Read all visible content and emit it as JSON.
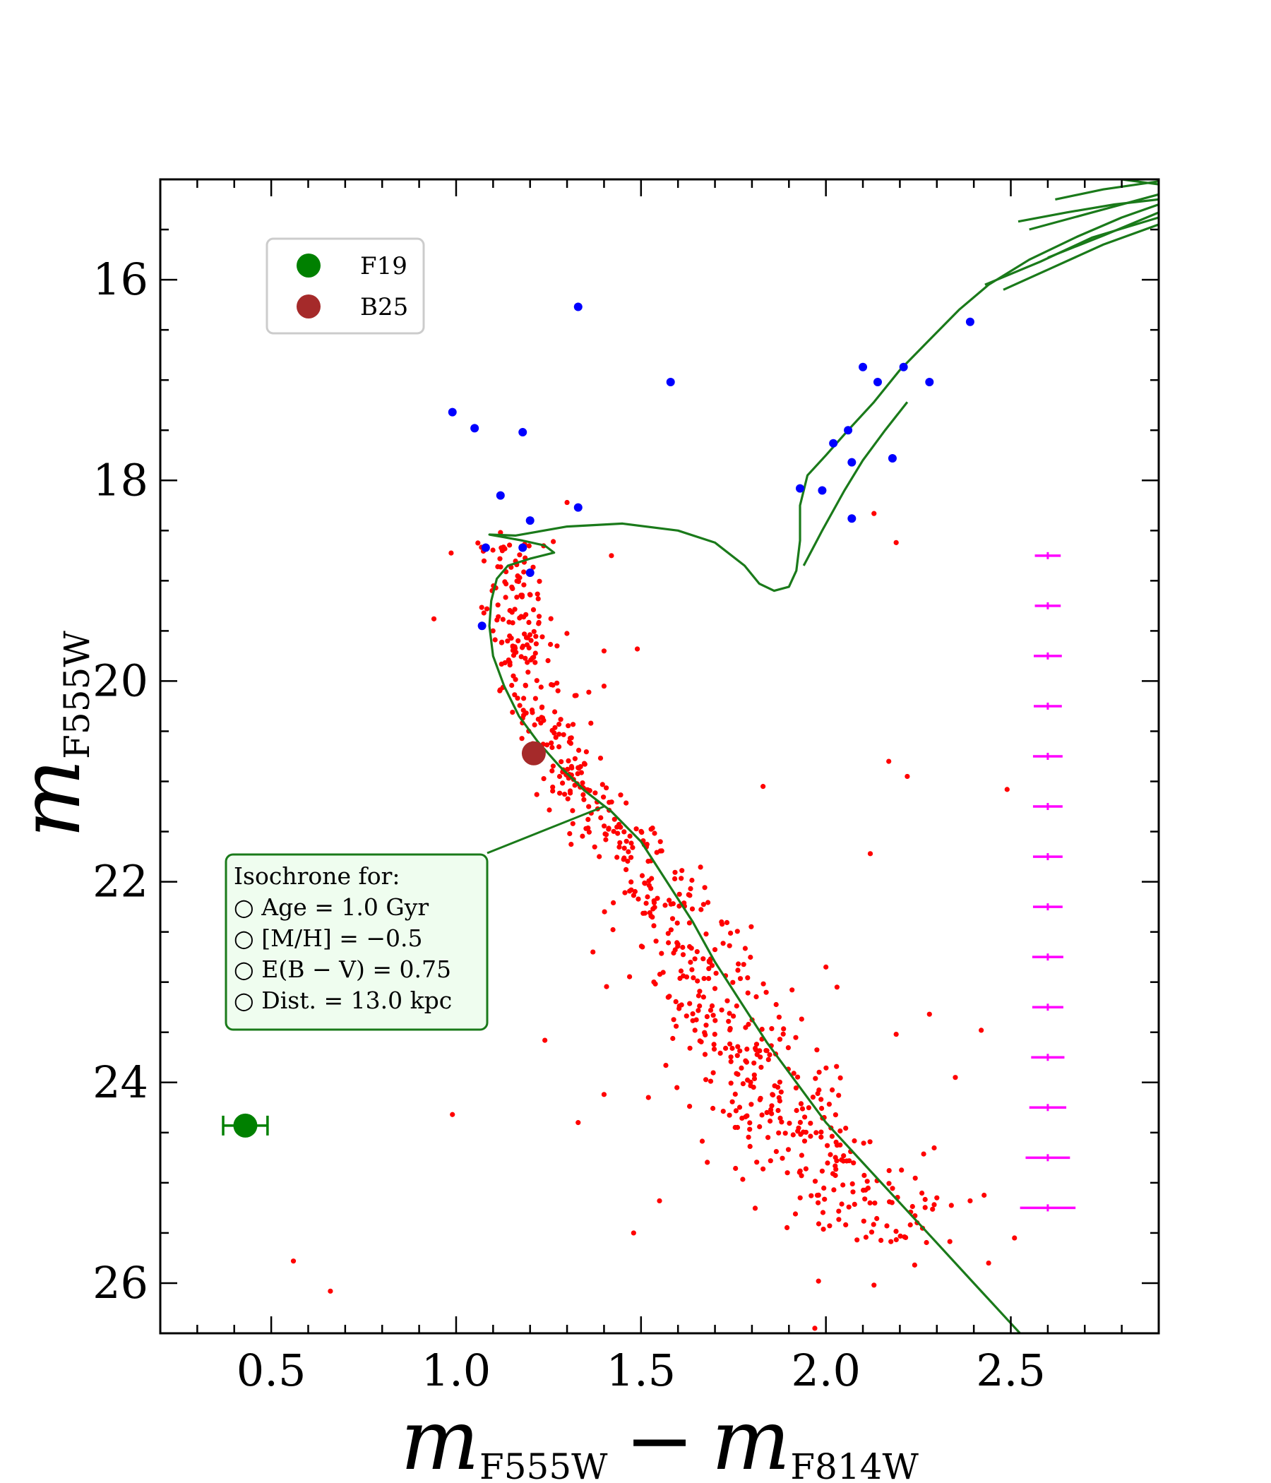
{
  "chart_data": {
    "type": "scatter",
    "title": "",
    "xlabel": {
      "main": "m",
      "sub1": "F555W",
      "minus": "−",
      "main2": "m",
      "sub2": "F814W"
    },
    "ylabel": {
      "main": "m",
      "sub": "F555W"
    },
    "xlim": [
      0.2,
      2.9
    ],
    "ylim": [
      26.5,
      15.0
    ],
    "y_inverted": true,
    "xticks": [
      0.5,
      1.0,
      1.5,
      2.0,
      2.5
    ],
    "xtick_labels": [
      "0.5",
      "1.0",
      "1.5",
      "2.0",
      "2.5"
    ],
    "yticks": [
      16,
      18,
      20,
      22,
      24,
      26
    ],
    "ytick_labels": [
      "16",
      "18",
      "20",
      "22",
      "24",
      "26"
    ],
    "legend": {
      "location": "upper-left",
      "entries": [
        {
          "label": "F19",
          "color": "#008000",
          "marker": "circle"
        },
        {
          "label": "B25",
          "color": "#a52a2a",
          "marker": "circle"
        }
      ]
    },
    "colors": {
      "members": "#ff0000",
      "bright_stars": "#0000ff",
      "isochrone": "#1a7a1a",
      "error_bars": "#ff00ff",
      "f19": "#008000",
      "b25": "#a52a2a",
      "annotation_bg": "#effdef"
    },
    "annotation": {
      "lines": [
        "Isochrone for:",
        "○ Age = 1.0 Gyr",
        "○ [M/H] = −0.5",
        "○ E(B − V) = 0.75",
        "○ Dist. = 13.0 kpc"
      ],
      "arrow_to": [
        1.4,
        21.25
      ]
    },
    "f19_point": {
      "x": 0.43,
      "y": 24.43,
      "xerr": 0.06
    },
    "b25_point": {
      "x": 1.21,
      "y": 20.72
    },
    "blue_stars": [
      [
        1.33,
        16.27
      ],
      [
        1.58,
        17.02
      ],
      [
        0.99,
        17.32
      ],
      [
        1.05,
        17.48
      ],
      [
        1.18,
        17.52
      ],
      [
        1.12,
        18.15
      ],
      [
        1.2,
        18.4
      ],
      [
        1.33,
        18.27
      ],
      [
        1.08,
        18.67
      ],
      [
        1.18,
        18.67
      ],
      [
        1.2,
        18.92
      ],
      [
        1.07,
        19.45
      ],
      [
        1.93,
        18.08
      ],
      [
        1.99,
        18.1
      ],
      [
        2.07,
        18.38
      ],
      [
        2.07,
        17.82
      ],
      [
        2.02,
        17.63
      ],
      [
        2.06,
        17.5
      ],
      [
        2.18,
        17.78
      ],
      [
        2.1,
        16.87
      ],
      [
        2.14,
        17.02
      ],
      [
        2.21,
        16.87
      ],
      [
        2.28,
        17.02
      ],
      [
        2.39,
        16.42
      ]
    ],
    "isochrone": {
      "main": [
        [
          2.6,
          26.8
        ],
        [
          2.5,
          26.4
        ],
        [
          2.4,
          26.0
        ],
        [
          2.3,
          25.6
        ],
        [
          2.2,
          25.2
        ],
        [
          2.1,
          24.8
        ],
        [
          2.0,
          24.4
        ],
        [
          1.92,
          24.0
        ],
        [
          1.84,
          23.6
        ],
        [
          1.77,
          23.2
        ],
        [
          1.7,
          22.8
        ],
        [
          1.64,
          22.4
        ],
        [
          1.57,
          22.0
        ],
        [
          1.5,
          21.6
        ],
        [
          1.42,
          21.3
        ],
        [
          1.35,
          21.1
        ],
        [
          1.28,
          20.85
        ],
        [
          1.22,
          20.6
        ],
        [
          1.17,
          20.35
        ],
        [
          1.13,
          20.05
        ],
        [
          1.1,
          19.75
        ],
        [
          1.09,
          19.45
        ],
        [
          1.095,
          19.2
        ],
        [
          1.11,
          18.98
        ],
        [
          1.14,
          18.85
        ],
        [
          1.2,
          18.78
        ],
        [
          1.265,
          18.72
        ],
        [
          1.24,
          18.65
        ],
        [
          1.18,
          18.6
        ],
        [
          1.12,
          18.56
        ],
        [
          1.09,
          18.54
        ],
        [
          1.16,
          18.55
        ],
        [
          1.3,
          18.46
        ],
        [
          1.45,
          18.43
        ],
        [
          1.6,
          18.5
        ],
        [
          1.7,
          18.62
        ],
        [
          1.78,
          18.85
        ],
        [
          1.82,
          19.03
        ],
        [
          1.86,
          19.1
        ],
        [
          1.9,
          19.06
        ],
        [
          1.92,
          18.9
        ],
        [
          1.93,
          18.6
        ],
        [
          1.93,
          18.25
        ],
        [
          1.95,
          17.95
        ],
        [
          2.0,
          17.75
        ],
        [
          2.06,
          17.5
        ],
        [
          2.13,
          17.22
        ],
        [
          2.2,
          16.9
        ],
        [
          2.28,
          16.6
        ],
        [
          2.36,
          16.3
        ],
        [
          2.44,
          16.05
        ],
        [
          2.55,
          15.8
        ],
        [
          2.68,
          15.57
        ],
        [
          2.8,
          15.38
        ],
        [
          2.9,
          15.25
        ]
      ],
      "secondary": [
        [
          1.94,
          18.85
        ],
        [
          1.99,
          18.5
        ],
        [
          2.05,
          18.1
        ],
        [
          2.1,
          17.8
        ],
        [
          2.16,
          17.5
        ],
        [
          2.22,
          17.22
        ]
      ],
      "agb": [
        [
          [
            2.48,
            16.1
          ],
          [
            2.6,
            15.9
          ],
          [
            2.75,
            15.65
          ],
          [
            2.9,
            15.45
          ]
        ],
        [
          [
            2.43,
            16.05
          ],
          [
            2.58,
            15.82
          ],
          [
            2.72,
            15.58
          ],
          [
            2.9,
            15.38
          ]
        ],
        [
          [
            2.6,
            15.78
          ],
          [
            2.75,
            15.56
          ],
          [
            2.9,
            15.33
          ]
        ],
        [
          [
            2.52,
            15.42
          ],
          [
            2.65,
            15.33
          ],
          [
            2.78,
            15.25
          ],
          [
            2.9,
            15.2
          ]
        ],
        [
          [
            2.55,
            15.5
          ],
          [
            2.7,
            15.35
          ],
          [
            2.9,
            15.15
          ]
        ],
        [
          [
            2.62,
            15.2
          ],
          [
            2.75,
            15.1
          ],
          [
            2.9,
            15.02
          ]
        ],
        [
          [
            2.8,
            15.0
          ],
          [
            2.9,
            15.05
          ]
        ]
      ]
    },
    "error_bars": {
      "x": 2.6,
      "mags": [
        18.75,
        19.25,
        19.75,
        20.25,
        20.75,
        21.25,
        21.75,
        22.25,
        22.75,
        23.25,
        23.75,
        24.25,
        24.75,
        25.25
      ],
      "xerr": [
        0.035,
        0.035,
        0.038,
        0.038,
        0.04,
        0.04,
        0.04,
        0.04,
        0.042,
        0.042,
        0.045,
        0.05,
        0.06,
        0.075
      ]
    },
    "red_outliers": [
      [
        1.3,
        18.22
      ],
      [
        1.42,
        18.75
      ],
      [
        1.12,
        18.52
      ],
      [
        2.13,
        18.33
      ],
      [
        2.19,
        18.62
      ],
      [
        0.94,
        19.38
      ],
      [
        1.4,
        19.7
      ],
      [
        1.49,
        19.68
      ],
      [
        1.4,
        20.05
      ],
      [
        2.17,
        20.8
      ],
      [
        2.22,
        20.95
      ],
      [
        2.49,
        21.08
      ],
      [
        1.83,
        21.05
      ],
      [
        2.12,
        21.72
      ],
      [
        1.37,
        22.7
      ],
      [
        2.0,
        22.85
      ],
      [
        2.03,
        23.05
      ],
      [
        2.28,
        23.32
      ],
      [
        2.19,
        23.52
      ],
      [
        2.42,
        23.48
      ],
      [
        1.24,
        23.58
      ],
      [
        0.99,
        24.32
      ],
      [
        1.33,
        24.4
      ],
      [
        1.4,
        24.12
      ],
      [
        1.52,
        24.15
      ],
      [
        1.55,
        25.18
      ],
      [
        1.48,
        25.5
      ],
      [
        0.56,
        25.78
      ],
      [
        0.66,
        26.08
      ],
      [
        1.98,
        25.98
      ],
      [
        2.13,
        26.02
      ],
      [
        2.24,
        25.82
      ],
      [
        1.97,
        26.45
      ],
      [
        2.51,
        25.55
      ],
      [
        2.44,
        25.8
      ],
      [
        2.39,
        25.18
      ],
      [
        2.3,
        25.15
      ],
      [
        2.35,
        23.95
      ]
    ],
    "red_members": {
      "note": "generated along main-sequence ridge",
      "count": 720,
      "mag_range": [
        18.6,
        25.8
      ]
    }
  }
}
